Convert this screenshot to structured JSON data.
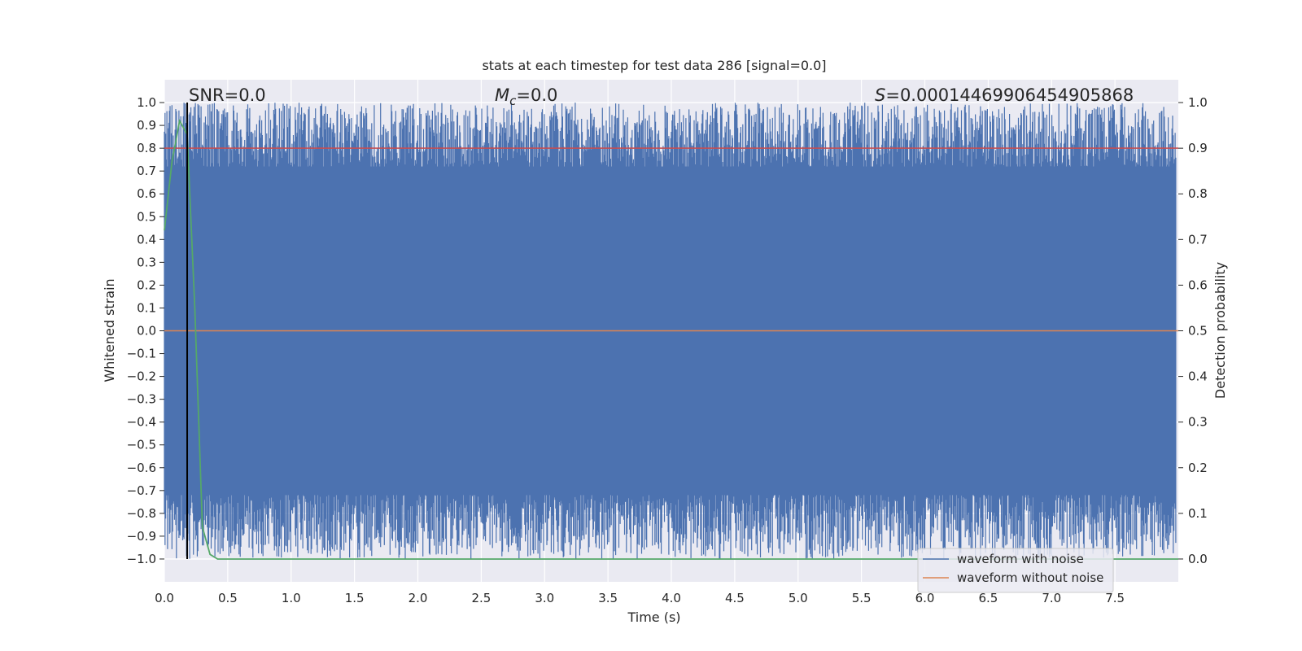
{
  "chart_data": {
    "type": "line",
    "title": "stats at each timestep for test data 286 [signal=0.0]",
    "xlabel": "Time (s)",
    "ylabel": "Whitened strain",
    "y2label": "Detection probability",
    "xlim": [
      0.0,
      8.0
    ],
    "ylim": [
      -1.1,
      1.1
    ],
    "y2lim": [
      -0.05,
      1.05
    ],
    "x_ticks": [
      "0.0",
      "0.5",
      "1.0",
      "1.5",
      "2.0",
      "2.5",
      "3.0",
      "3.5",
      "4.0",
      "4.5",
      "5.0",
      "5.5",
      "6.0",
      "6.5",
      "7.0",
      "7.5"
    ],
    "y_ticks": [
      "1.0",
      "0.9",
      "0.8",
      "0.7",
      "0.6",
      "0.5",
      "0.4",
      "0.3",
      "0.2",
      "0.1",
      "0.0",
      "−0.1",
      "−0.2",
      "−0.3",
      "−0.4",
      "−0.5",
      "−0.6",
      "−0.7",
      "−0.8",
      "−0.9",
      "−1.0"
    ],
    "y2_ticks": [
      "1.0",
      "0.9",
      "0.8",
      "0.7",
      "0.6",
      "0.5",
      "0.4",
      "0.3",
      "0.2",
      "0.1",
      "0.0"
    ],
    "grid": true,
    "legend_position": "lower-right",
    "annotations": {
      "snr": "SNR=0.0",
      "mc_symbol": "M",
      "mc_sub": "c",
      "mc_value": "=0.0",
      "s_symbol": "S",
      "s_value": "=0.00014469906454905868"
    },
    "vertical_marker_x": 0.18,
    "series": [
      {
        "name": "waveform with noise",
        "color": "#4c72b0",
        "axis": "left",
        "envelope": "whitened noise filling approximately −1.0 to 1.0 across 0–8 s"
      },
      {
        "name": "waveform without noise",
        "color": "#dd8452",
        "axis": "left",
        "x": [
          0.0,
          8.0
        ],
        "y": [
          0.0,
          0.0
        ]
      },
      {
        "color": "#c44e52",
        "axis": "right",
        "x": [
          0.0,
          8.0
        ],
        "y": [
          0.9,
          0.9
        ]
      },
      {
        "color": "#55a868",
        "axis": "right",
        "x": [
          0.0,
          0.06,
          0.12,
          0.18,
          0.24,
          0.3,
          0.36,
          0.42,
          8.0
        ],
        "y": [
          0.72,
          0.87,
          0.96,
          0.93,
          0.55,
          0.07,
          0.01,
          0.0,
          0.0
        ]
      }
    ]
  }
}
